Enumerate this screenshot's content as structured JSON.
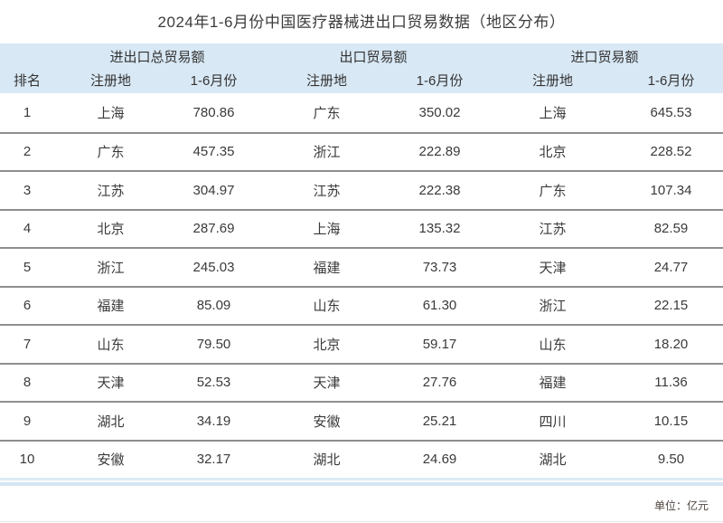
{
  "title": "2024年1-6月份中国医疗器械进出口贸易数据（地区分布）",
  "unit_note": "单位：亿元",
  "table": {
    "rank_header": "排名",
    "groups": [
      {
        "label": "进出口总贸易额",
        "sub": [
          "注册地",
          "1-6月份"
        ]
      },
      {
        "label": "出口贸易额",
        "sub": [
          "注册地",
          "1-6月份"
        ]
      },
      {
        "label": "进口贸易额",
        "sub": [
          "注册地",
          "1-6月份"
        ]
      }
    ],
    "rows": [
      {
        "rank": "1",
        "total_region": "上海",
        "total_value": "780.86",
        "export_region": "广东",
        "export_value": "350.02",
        "import_region": "上海",
        "import_value": "645.53"
      },
      {
        "rank": "2",
        "total_region": "广东",
        "total_value": "457.35",
        "export_region": "浙江",
        "export_value": "222.89",
        "import_region": "北京",
        "import_value": "228.52"
      },
      {
        "rank": "3",
        "total_region": "江苏",
        "total_value": "304.97",
        "export_region": "江苏",
        "export_value": "222.38",
        "import_region": "广东",
        "import_value": "107.34"
      },
      {
        "rank": "4",
        "total_region": "北京",
        "total_value": "287.69",
        "export_region": "上海",
        "export_value": "135.32",
        "import_region": "江苏",
        "import_value": "82.59"
      },
      {
        "rank": "5",
        "total_region": "浙江",
        "total_value": "245.03",
        "export_region": "福建",
        "export_value": "73.73",
        "import_region": "天津",
        "import_value": "24.77"
      },
      {
        "rank": "6",
        "total_region": "福建",
        "total_value": "85.09",
        "export_region": "山东",
        "export_value": "61.30",
        "import_region": "浙江",
        "import_value": "22.15"
      },
      {
        "rank": "7",
        "total_region": "山东",
        "total_value": "79.50",
        "export_region": "北京",
        "export_value": "59.17",
        "import_region": "山东",
        "import_value": "18.20"
      },
      {
        "rank": "8",
        "total_region": "天津",
        "total_value": "52.53",
        "export_region": "天津",
        "export_value": "27.76",
        "import_region": "福建",
        "import_value": "11.36"
      },
      {
        "rank": "9",
        "total_region": "湖北",
        "total_value": "34.19",
        "export_region": "安徽",
        "export_value": "25.21",
        "import_region": "四川",
        "import_value": "10.15"
      },
      {
        "rank": "10",
        "total_region": "安徽",
        "total_value": "32.17",
        "export_region": "湖北",
        "export_value": "24.69",
        "import_region": "湖北",
        "import_value": "9.50"
      }
    ]
  },
  "chart_data": {
    "type": "table",
    "title": "2024年1-6月份中国医疗器械进出口贸易数据（地区分布）",
    "unit": "亿元",
    "columns": [
      "排名",
      "进出口总贸易额 注册地",
      "进出口总贸易额 1-6月份",
      "出口贸易额 注册地",
      "出口贸易额 1-6月份",
      "进口贸易额 注册地",
      "进口贸易额 1-6月份"
    ],
    "rows": [
      [
        1,
        "上海",
        780.86,
        "广东",
        350.02,
        "上海",
        645.53
      ],
      [
        2,
        "广东",
        457.35,
        "浙江",
        222.89,
        "北京",
        228.52
      ],
      [
        3,
        "江苏",
        304.97,
        "江苏",
        222.38,
        "广东",
        107.34
      ],
      [
        4,
        "北京",
        287.69,
        "上海",
        135.32,
        "江苏",
        82.59
      ],
      [
        5,
        "浙江",
        245.03,
        "福建",
        73.73,
        "天津",
        24.77
      ],
      [
        6,
        "福建",
        85.09,
        "山东",
        61.3,
        "浙江",
        22.15
      ],
      [
        7,
        "山东",
        79.5,
        "北京",
        59.17,
        "山东",
        18.2
      ],
      [
        8,
        "天津",
        52.53,
        "天津",
        27.76,
        "福建",
        11.36
      ],
      [
        9,
        "湖北",
        34.19,
        "安徽",
        25.21,
        "四川",
        10.15
      ],
      [
        10,
        "安徽",
        32.17,
        "湖北",
        24.69,
        "湖北",
        9.5
      ]
    ]
  },
  "colors": {
    "header_bg": "#d8e8f5",
    "row_divider": "#8f8f8f",
    "accent_line_light": "#dcebf6",
    "accent_line": "#d3e4f3",
    "title_text": "#3c3c3c",
    "body_text": "#3a3a3a",
    "note_text": "#4e4540"
  }
}
